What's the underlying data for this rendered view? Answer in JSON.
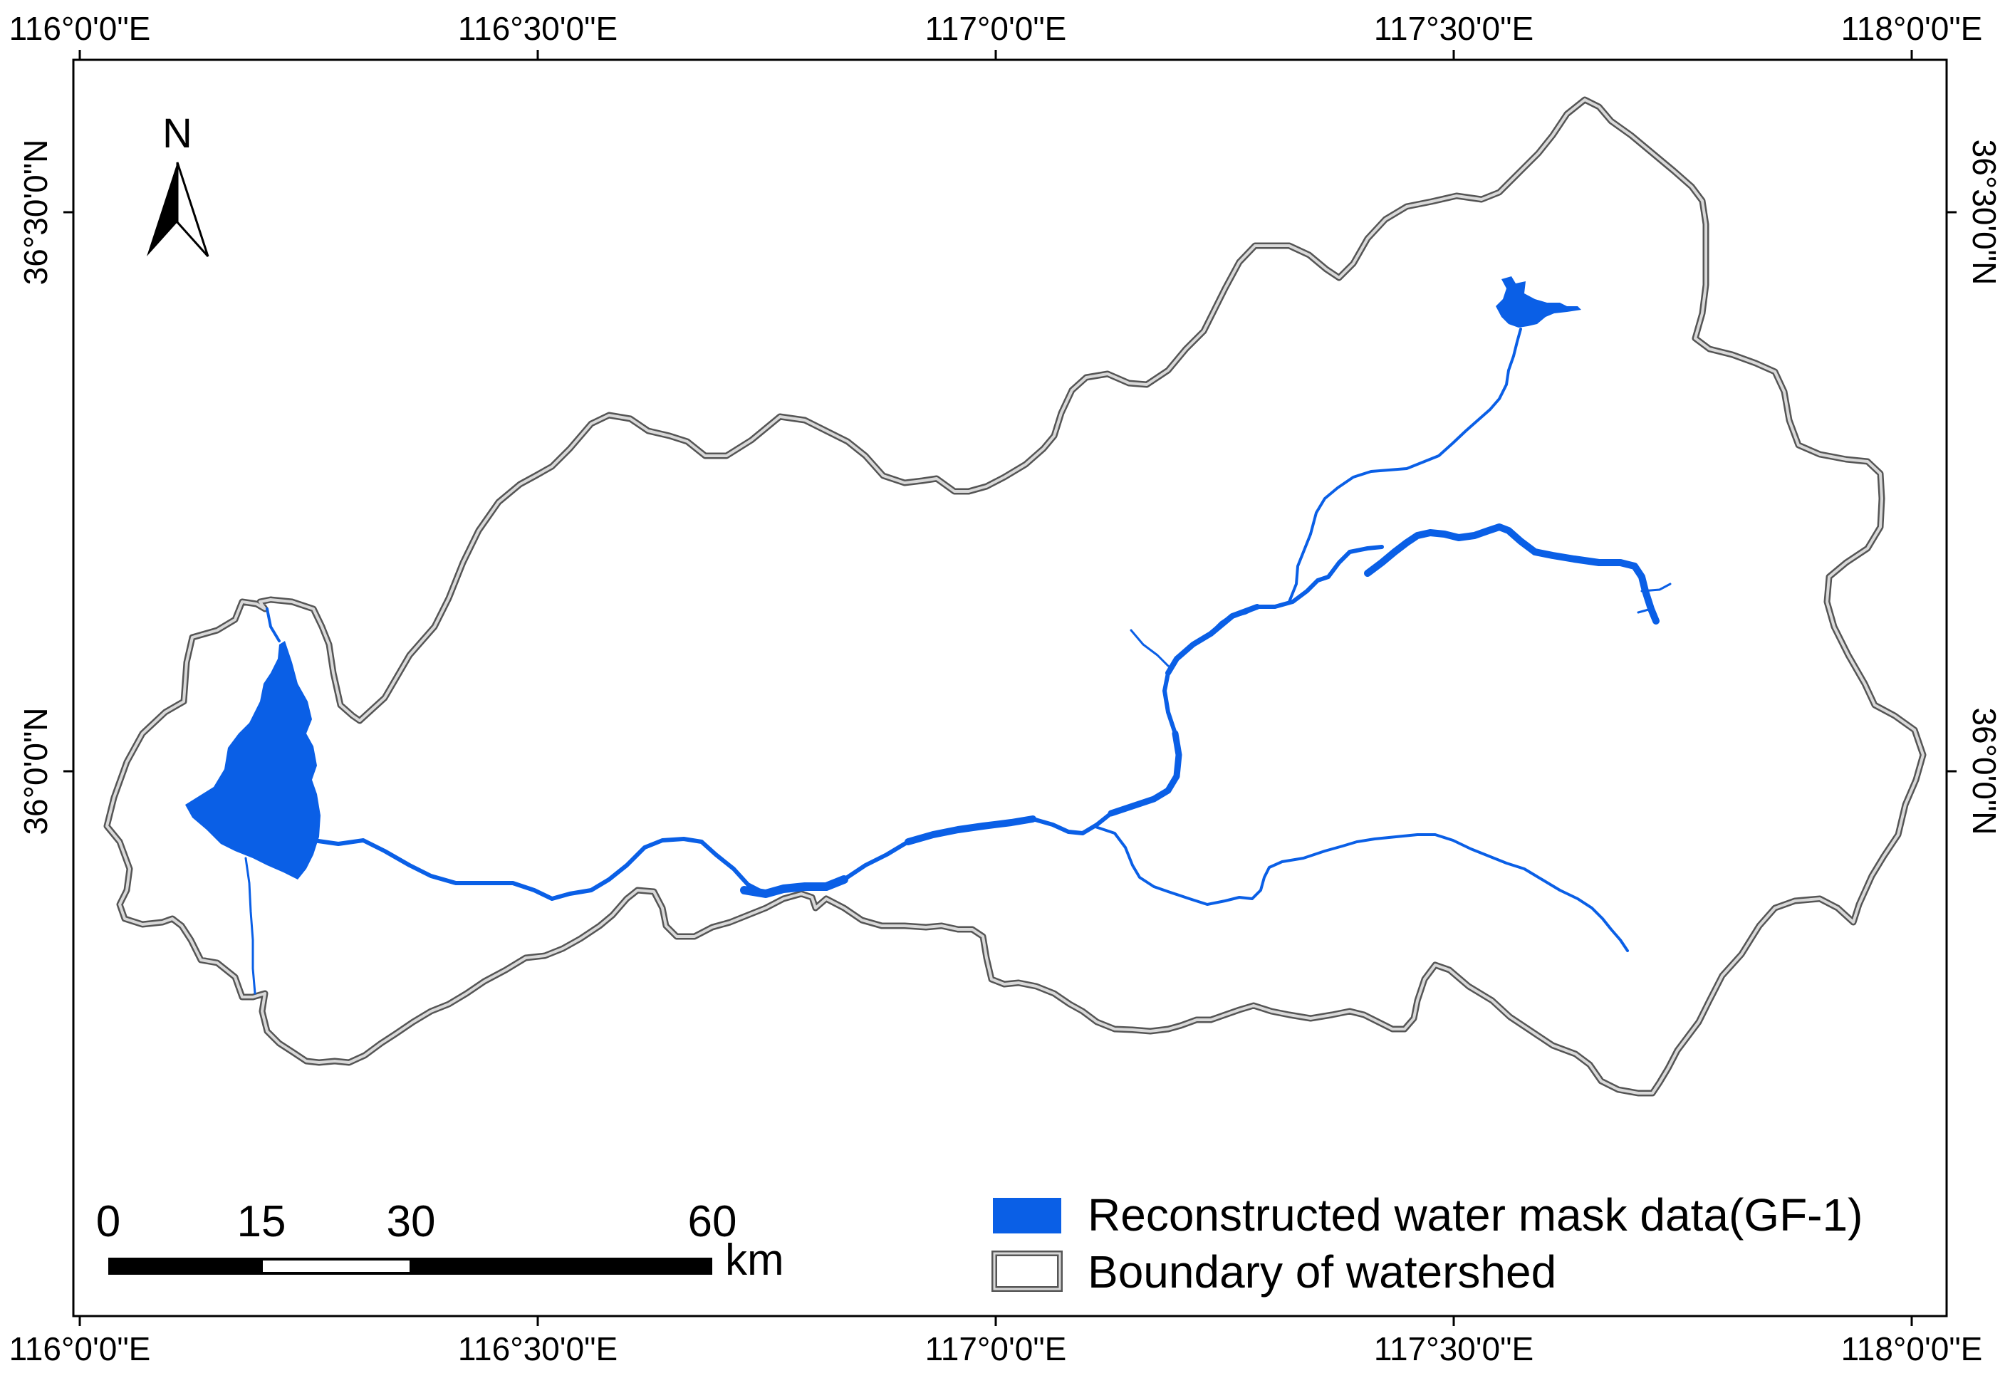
{
  "map": {
    "longitude_labels": [
      "116°0'0\"E",
      "116°30'0\"E",
      "117°0'0\"E",
      "117°30'0\"E",
      "118°0'0\"E"
    ],
    "latitude_labels": [
      "36°30'0\"N",
      "36°0'0\"N"
    ],
    "north_arrow": {
      "label": "N",
      "icon": "north-arrow-icon"
    },
    "scale_bar": {
      "ticks": [
        "0",
        "15",
        "30",
        "60"
      ],
      "unit": "km"
    },
    "legend": {
      "items": [
        {
          "label": "Reconstructed water mask data(GF-1)",
          "color": "#0a5fe6",
          "icon": "water-swatch-icon"
        },
        {
          "label": "Boundary of watershed",
          "color": "#666666",
          "icon": "boundary-swatch-icon"
        }
      ]
    },
    "colors": {
      "water": "#0a5fe6",
      "boundary": "#555555",
      "frame": "#000000",
      "background": "#ffffff"
    }
  }
}
